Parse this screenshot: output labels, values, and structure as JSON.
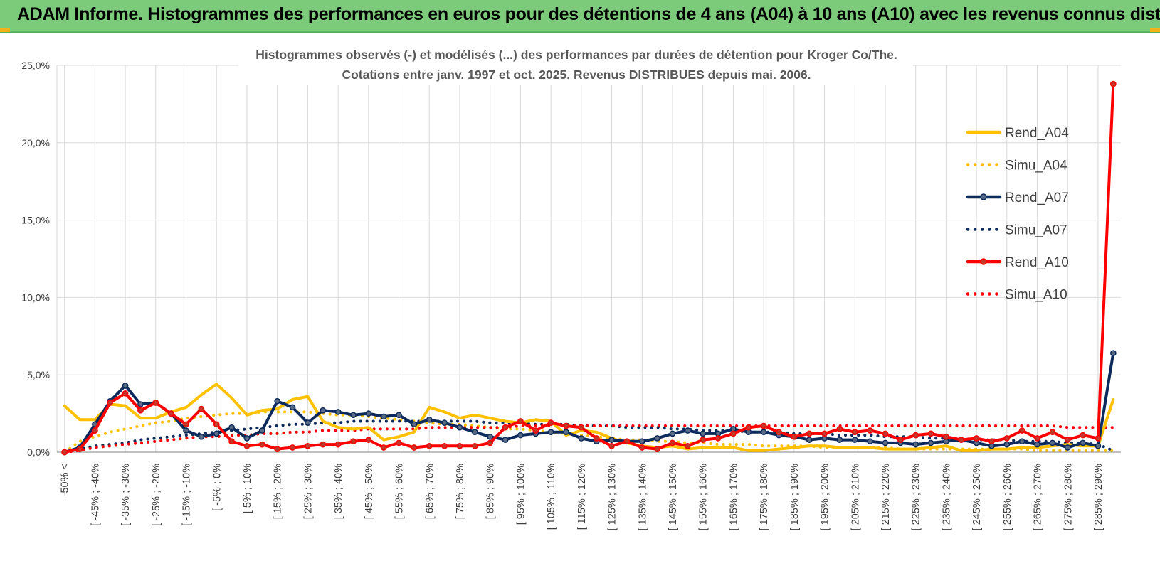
{
  "banner": {
    "title": "ADAM Informe. Histogrammes des performances en euros pour des détentions de 4 ans (A04) à 10 ans (A10) avec les revenus connus distribués"
  },
  "colors": {
    "banner_bg": "#7ccb7a",
    "corner": "#f2b21a",
    "grid": "#d9d9d9",
    "axis": "#000000"
  },
  "chart_data": {
    "type": "line",
    "title_line1": "Histogrammes observés (-) et modélisés (...) des performances par durées de détention pour Kroger Co/The.",
    "title_line2": "Cotations entre janv. 1997 et oct. 2025.  Revenus DISTRIBUES depuis mai. 2006.",
    "ylim": [
      0,
      25
    ],
    "yticks": [
      0,
      5,
      10,
      15,
      20,
      25
    ],
    "ytick_labels": [
      "0,0%",
      "5,0%",
      "10,0%",
      "15,0%",
      "20,0%",
      "25,0%"
    ],
    "x_labels": [
      "-50% <",
      "[ -45% ; -40%",
      "[ -35% ; -30%",
      "[ -25% ; -20%",
      "[ -15% ; -10%",
      "[ -5% ; 0%",
      "[ 5% ; 10%",
      "[ 15% ; 20%",
      "[ 25% ; 30%",
      "[ 35% ; 40%",
      "[ 45% ; 50%",
      "[ 55% ; 60%",
      "[ 65% ; 70%",
      "[ 75% ; 80%",
      "[ 85% ; 90%",
      "[ 95% ; 100%",
      "[ 105% ; 110%",
      "[ 115% ; 120%",
      "[ 125% ; 130%",
      "[ 135% ; 140%",
      "[ 145% ; 150%",
      "[ 155% ; 160%",
      "[ 165% ; 170%",
      "[ 175% ; 180%",
      "[ 185% ; 190%",
      "[ 195% ; 200%",
      "[ 205% ; 210%",
      "[ 215% ; 220%",
      "[ 225% ; 230%",
      "[ 235% ; 240%",
      "[ 245% ; 250%",
      "[ 255% ; 260%",
      "[ 265% ; 270%",
      "[ 275% ; 280%",
      "[ 285% ; 290%"
    ],
    "n_points": 70,
    "legend_position": "right",
    "series": [
      {
        "name": "Rend_A04",
        "color": "#ffc000",
        "style": "solid",
        "markers": false,
        "values": [
          3.0,
          2.1,
          2.1,
          3.1,
          3.0,
          2.2,
          2.2,
          2.6,
          2.9,
          3.7,
          4.4,
          3.5,
          2.4,
          2.7,
          2.8,
          3.4,
          3.6,
          2.0,
          1.6,
          1.5,
          1.6,
          0.8,
          1.0,
          1.3,
          2.9,
          2.6,
          2.2,
          2.4,
          2.2,
          2.0,
          1.9,
          2.1,
          2.0,
          1.1,
          1.4,
          1.3,
          0.9,
          0.6,
          0.4,
          0.3,
          0.4,
          0.2,
          0.3,
          0.3,
          0.3,
          0.1,
          0.1,
          0.2,
          0.3,
          0.4,
          0.4,
          0.3,
          0.3,
          0.3,
          0.2,
          0.2,
          0.2,
          0.3,
          0.4,
          0.1,
          0.1,
          0.2,
          0.2,
          0.3,
          0.3,
          0.4,
          0.5,
          0.4,
          0.4,
          3.4
        ]
      },
      {
        "name": "Simu_A04",
        "color": "#ffc000",
        "style": "dotted",
        "markers": false,
        "values": [
          0.0,
          0.7,
          1.0,
          1.3,
          1.5,
          1.7,
          1.9,
          2.0,
          2.2,
          2.3,
          2.4,
          2.5,
          2.5,
          2.6,
          2.6,
          2.6,
          2.6,
          2.5,
          2.4,
          2.4,
          2.3,
          2.2,
          2.1,
          2.0,
          1.9,
          1.8,
          1.8,
          1.7,
          1.6,
          1.5,
          1.5,
          1.4,
          1.3,
          1.2,
          1.1,
          1.0,
          0.9,
          0.8,
          0.8,
          0.7,
          0.7,
          0.6,
          0.6,
          0.5,
          0.5,
          0.5,
          0.4,
          0.4,
          0.4,
          0.4,
          0.3,
          0.3,
          0.3,
          0.3,
          0.3,
          0.2,
          0.2,
          0.2,
          0.2,
          0.2,
          0.2,
          0.2,
          0.2,
          0.2,
          0.1,
          0.1,
          0.1,
          0.1,
          0.1,
          0.1
        ]
      },
      {
        "name": "Rend_A07",
        "color": "#0d2a5c",
        "style": "solid",
        "markers": true,
        "values": [
          0.0,
          0.3,
          1.8,
          3.3,
          4.3,
          3.1,
          3.2,
          2.5,
          1.4,
          1.0,
          1.2,
          1.6,
          0.9,
          1.4,
          3.3,
          2.9,
          1.9,
          2.7,
          2.6,
          2.4,
          2.5,
          2.3,
          2.4,
          1.8,
          2.1,
          1.9,
          1.6,
          1.3,
          1.0,
          0.8,
          1.1,
          1.2,
          1.3,
          1.3,
          0.9,
          0.7,
          0.8,
          0.7,
          0.7,
          0.9,
          1.2,
          1.4,
          1.2,
          1.2,
          1.5,
          1.3,
          1.3,
          1.1,
          1.0,
          0.8,
          0.9,
          0.8,
          0.8,
          0.7,
          0.6,
          0.6,
          0.5,
          0.6,
          0.7,
          0.8,
          0.6,
          0.4,
          0.5,
          0.7,
          0.5,
          0.6,
          0.3,
          0.6,
          0.4,
          6.4
        ]
      },
      {
        "name": "Simu_A07",
        "color": "#0d2a5c",
        "style": "dotted",
        "markers": false,
        "values": [
          0.0,
          0.2,
          0.4,
          0.5,
          0.6,
          0.8,
          0.9,
          1.0,
          1.1,
          1.2,
          1.3,
          1.4,
          1.5,
          1.6,
          1.7,
          1.8,
          1.8,
          1.9,
          1.9,
          2.0,
          2.0,
          2.0,
          2.0,
          2.0,
          2.0,
          2.0,
          2.0,
          2.0,
          1.9,
          1.9,
          1.9,
          1.8,
          1.8,
          1.8,
          1.7,
          1.7,
          1.7,
          1.6,
          1.6,
          1.6,
          1.5,
          1.5,
          1.4,
          1.4,
          1.4,
          1.3,
          1.3,
          1.3,
          1.2,
          1.2,
          1.2,
          1.1,
          1.1,
          1.1,
          1.0,
          1.0,
          1.0,
          0.9,
          0.9,
          0.9,
          0.8,
          0.8,
          0.8,
          0.7,
          0.7,
          0.7,
          0.6,
          0.6,
          0.5,
          0.1
        ]
      },
      {
        "name": "Rend_A10",
        "color": "#ff0000",
        "style": "solid",
        "markers": true,
        "values": [
          0.0,
          0.2,
          1.4,
          3.2,
          3.8,
          2.7,
          3.2,
          2.5,
          1.8,
          2.8,
          1.8,
          0.7,
          0.4,
          0.5,
          0.2,
          0.3,
          0.4,
          0.5,
          0.5,
          0.7,
          0.8,
          0.3,
          0.6,
          0.3,
          0.4,
          0.4,
          0.4,
          0.4,
          0.6,
          1.6,
          2.0,
          1.4,
          1.9,
          1.7,
          1.6,
          0.9,
          0.4,
          0.7,
          0.3,
          0.2,
          0.6,
          0.4,
          0.8,
          0.9,
          1.2,
          1.6,
          1.7,
          1.3,
          1.0,
          1.2,
          1.2,
          1.5,
          1.3,
          1.4,
          1.2,
          0.8,
          1.1,
          1.2,
          1.0,
          0.8,
          0.9,
          0.7,
          0.9,
          1.4,
          0.9,
          1.3,
          0.8,
          1.1,
          0.9,
          23.8
        ]
      },
      {
        "name": "Simu_A10",
        "color": "#ff0000",
        "style": "dotted",
        "markers": false,
        "values": [
          0.0,
          0.1,
          0.3,
          0.4,
          0.5,
          0.6,
          0.7,
          0.8,
          0.9,
          1.0,
          1.0,
          1.1,
          1.1,
          1.2,
          1.2,
          1.3,
          1.3,
          1.4,
          1.4,
          1.4,
          1.5,
          1.5,
          1.5,
          1.5,
          1.6,
          1.6,
          1.6,
          1.6,
          1.6,
          1.6,
          1.7,
          1.7,
          1.7,
          1.7,
          1.7,
          1.7,
          1.7,
          1.7,
          1.7,
          1.7,
          1.7,
          1.7,
          1.7,
          1.7,
          1.7,
          1.7,
          1.7,
          1.7,
          1.7,
          1.7,
          1.7,
          1.7,
          1.7,
          1.7,
          1.7,
          1.7,
          1.7,
          1.7,
          1.7,
          1.7,
          1.7,
          1.7,
          1.7,
          1.7,
          1.7,
          1.7,
          1.6,
          1.6,
          1.6,
          1.6
        ]
      }
    ]
  }
}
